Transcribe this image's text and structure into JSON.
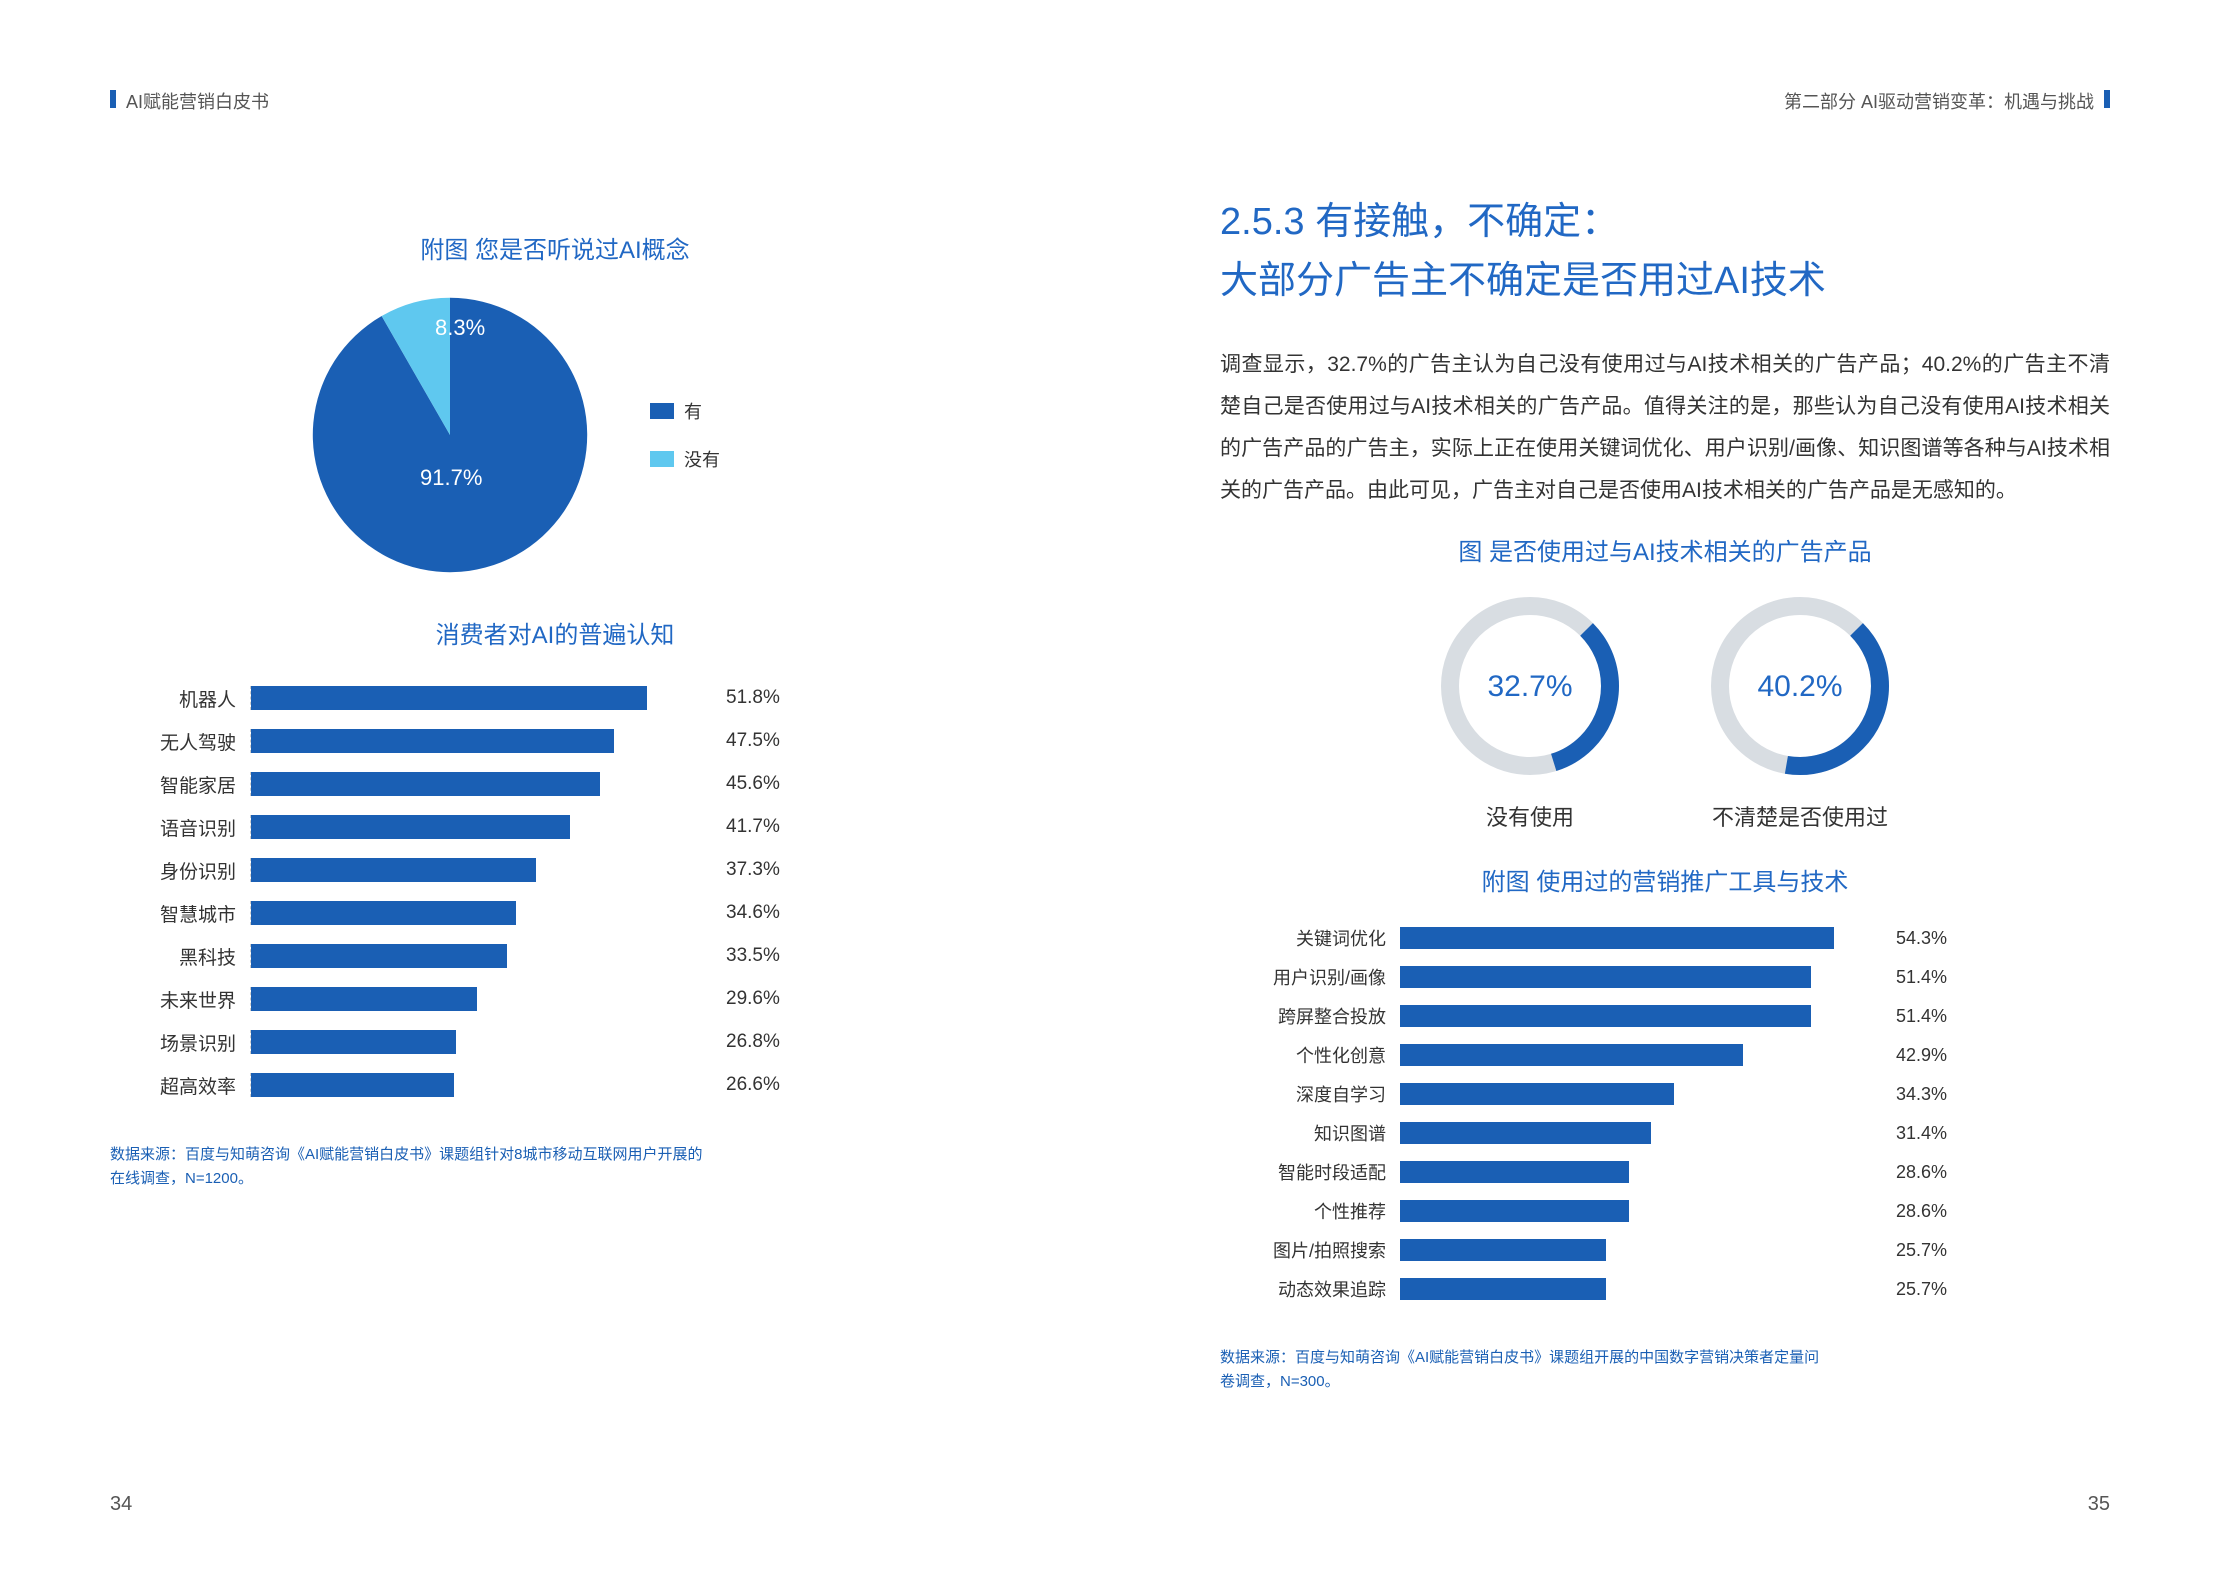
{
  "header_left": "AI赋能营销白皮书",
  "header_right": "第二部分 AI驱动营销变革：机遇与挑战",
  "page_left_num": "34",
  "page_right_num": "35",
  "colors": {
    "primary": "#1a5fb4",
    "accent": "#2168c4",
    "light_blue": "#5fc8ef",
    "text": "#333333",
    "grid": "#d0d0d0",
    "bg": "#ffffff"
  },
  "pie_chart": {
    "title": "附图 您是否听说过AI概念",
    "type": "pie",
    "slices": [
      {
        "label": "有",
        "value": 91.7,
        "color": "#1a5fb4",
        "text": "91.7%"
      },
      {
        "label": "没有",
        "value": 8.3,
        "color": "#5fc8ef",
        "text": "8.3%"
      }
    ]
  },
  "bar_left": {
    "title": "消费者对AI的普遍认知",
    "type": "bar",
    "max": 60,
    "bar_color": "#1a5fb4",
    "items": [
      {
        "label": "机器人",
        "value": 51.8,
        "text": "51.8%"
      },
      {
        "label": "无人驾驶",
        "value": 47.5,
        "text": "47.5%"
      },
      {
        "label": "智能家居",
        "value": 45.6,
        "text": "45.6%"
      },
      {
        "label": "语音识别",
        "value": 41.7,
        "text": "41.7%"
      },
      {
        "label": "身份识别",
        "value": 37.3,
        "text": "37.3%"
      },
      {
        "label": "智慧城市",
        "value": 34.6,
        "text": "34.6%"
      },
      {
        "label": "黑科技",
        "value": 33.5,
        "text": "33.5%"
      },
      {
        "label": "未来世界",
        "value": 29.6,
        "text": "29.6%"
      },
      {
        "label": "场景识别",
        "value": 26.8,
        "text": "26.8%"
      },
      {
        "label": "超高效率",
        "value": 26.6,
        "text": "26.6%"
      }
    ]
  },
  "source_left": "数据来源：百度与知萌咨询《AI赋能营销白皮书》课题组针对8城市移动互联网用户开展的在线调查，N=1200。",
  "section": {
    "num": "2.5.3 有接触，不确定：",
    "title": "大部分广告主不确定是否用过AI技术",
    "body": "调查显示，32.7%的广告主认为自己没有使用过与AI技术相关的广告产品；40.2%的广告主不清楚自己是否使用过与AI技术相关的广告产品。值得关注的是，那些认为自己没有使用AI技术相关的广告产品的广告主，实际上正在使用关键词优化、用户识别/画像、知识图谱等各种与AI技术相关的广告产品。由此可见，广告主对自己是否使用AI技术相关的广告产品是无感知的。"
  },
  "donut_chart": {
    "title": "图 是否使用过与AI技术相关的广告产品",
    "type": "donut",
    "ring_bg": "#d8dde2",
    "ring_fg": "#1a5fb4",
    "ring_width": 18,
    "items": [
      {
        "pct": 32.7,
        "text": "32.7%",
        "label": "没有使用"
      },
      {
        "pct": 40.2,
        "text": "40.2%",
        "label": "不清楚是否使用过"
      }
    ]
  },
  "bar_right": {
    "title": "附图 使用过的营销推广工具与技术",
    "type": "bar",
    "max": 60,
    "bar_color": "#1a5fb4",
    "items": [
      {
        "label": "关键词优化",
        "value": 54.3,
        "text": "54.3%"
      },
      {
        "label": "用户识别/画像",
        "value": 51.4,
        "text": "51.4%"
      },
      {
        "label": "跨屏整合投放",
        "value": 51.4,
        "text": "51.4%"
      },
      {
        "label": "个性化创意",
        "value": 42.9,
        "text": "42.9%"
      },
      {
        "label": "深度自学习",
        "value": 34.3,
        "text": "34.3%"
      },
      {
        "label": "知识图谱",
        "value": 31.4,
        "text": "31.4%"
      },
      {
        "label": "智能时段适配",
        "value": 28.6,
        "text": "28.6%"
      },
      {
        "label": "个性推荐",
        "value": 28.6,
        "text": "28.6%"
      },
      {
        "label": "图片/拍照搜索",
        "value": 25.7,
        "text": "25.7%"
      },
      {
        "label": "动态效果追踪",
        "value": 25.7,
        "text": "25.7%"
      }
    ]
  },
  "source_right": "数据来源：百度与知萌咨询《AI赋能营销白皮书》课题组开展的中国数字营销决策者定量问卷调查，N=300。"
}
